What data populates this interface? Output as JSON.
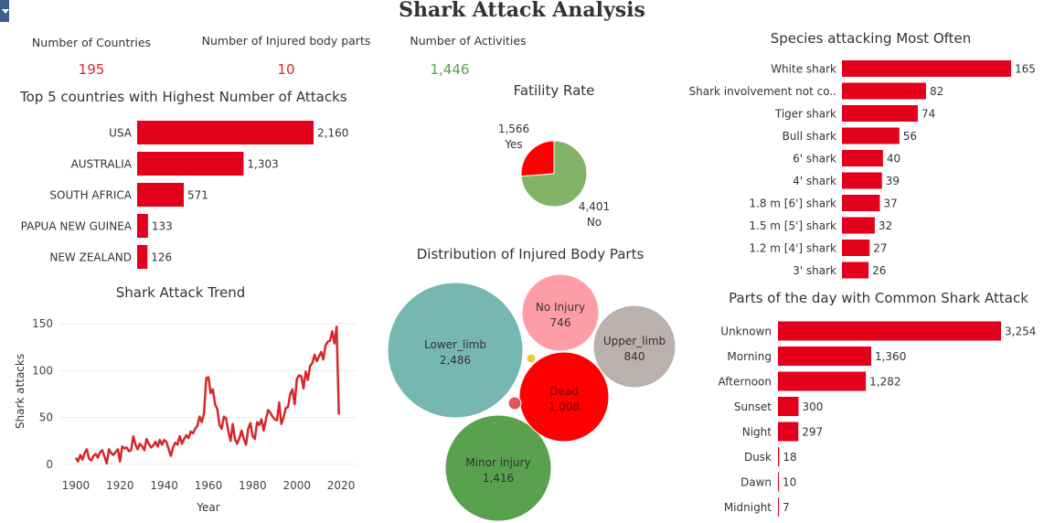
{
  "title": "Shark Attack Analysis",
  "kpis": [
    {
      "label": "Number of Countries",
      "value": "195",
      "color": "#d62728"
    },
    {
      "label": "Number of Injured body parts",
      "value": "10",
      "color": "#d62728"
    },
    {
      "label": "Number of Activities",
      "value": "1,446",
      "color": "#59a14f"
    }
  ],
  "bar_color": "#e3001b",
  "chart_data": [
    {
      "type": "bar",
      "orientation": "horizontal",
      "title": "Top 5 countries with Highest Number of Attacks",
      "categories": [
        "USA",
        "AUSTRALIA",
        "SOUTH AFRICA",
        "PAPUA NEW GUINEA",
        "NEW ZEALAND"
      ],
      "values": [
        2160,
        1303,
        571,
        133,
        126
      ],
      "labels": [
        "2,160",
        "1,303",
        "571",
        "133",
        "126"
      ]
    },
    {
      "type": "line",
      "title": "Shark Attack Trend",
      "xlabel": "Year",
      "ylabel": "Shark attacks",
      "xlim": [
        1893,
        2027
      ],
      "ylim": [
        -8,
        155
      ],
      "xticks": [
        1900,
        1920,
        1940,
        1960,
        1980,
        2000,
        2020
      ],
      "yticks": [
        0,
        50,
        100,
        150
      ],
      "x": [
        1900,
        1901,
        1902,
        1903,
        1904,
        1905,
        1906,
        1907,
        1908,
        1909,
        1910,
        1911,
        1912,
        1913,
        1914,
        1915,
        1916,
        1917,
        1918,
        1919,
        1920,
        1921,
        1922,
        1923,
        1924,
        1925,
        1926,
        1927,
        1928,
        1929,
        1930,
        1931,
        1932,
        1933,
        1934,
        1935,
        1936,
        1937,
        1938,
        1939,
        1940,
        1941,
        1942,
        1943,
        1944,
        1945,
        1946,
        1947,
        1948,
        1949,
        1950,
        1951,
        1952,
        1953,
        1954,
        1955,
        1956,
        1957,
        1958,
        1959,
        1960,
        1961,
        1962,
        1963,
        1964,
        1965,
        1966,
        1967,
        1968,
        1969,
        1970,
        1971,
        1972,
        1973,
        1974,
        1975,
        1976,
        1977,
        1978,
        1979,
        1980,
        1981,
        1982,
        1983,
        1984,
        1985,
        1986,
        1987,
        1988,
        1989,
        1990,
        1991,
        1992,
        1993,
        1994,
        1995,
        1996,
        1997,
        1998,
        1999,
        2000,
        2001,
        2002,
        2003,
        2004,
        2005,
        2006,
        2007,
        2008,
        2009,
        2010,
        2011,
        2012,
        2013,
        2014,
        2015,
        2016,
        2017,
        2018,
        2019
      ],
      "y": [
        7,
        3,
        10,
        5,
        12,
        16,
        6,
        4,
        9,
        11,
        7,
        13,
        15,
        8,
        1,
        16,
        12,
        10,
        13,
        16,
        3,
        19,
        17,
        18,
        14,
        15,
        30,
        21,
        16,
        22,
        19,
        15,
        27,
        22,
        18,
        20,
        24,
        19,
        26,
        21,
        26,
        24,
        16,
        9,
        18,
        23,
        21,
        30,
        22,
        27,
        31,
        28,
        35,
        33,
        38,
        41,
        51,
        45,
        55,
        92,
        93,
        76,
        80,
        64,
        59,
        42,
        38,
        51,
        49,
        35,
        25,
        43,
        27,
        22,
        28,
        36,
        27,
        21,
        38,
        44,
        30,
        27,
        45,
        42,
        48,
        36,
        48,
        58,
        55,
        51,
        48,
        47,
        66,
        43,
        50,
        60,
        61,
        75,
        80,
        64,
        91,
        95,
        94,
        81,
        99,
        90,
        105,
        108,
        117,
        110,
        115,
        120,
        112,
        127,
        131,
        132,
        142,
        129,
        147,
        53
      ],
      "series": [
        {
          "color": "#d62728"
        }
      ]
    },
    {
      "type": "pie",
      "title": "Fatility Rate",
      "slices": [
        {
          "label": "Yes",
          "value": 1566,
          "value_label": "1,566",
          "color": "#ff0000"
        },
        {
          "label": "No",
          "value": 4401,
          "value_label": "4,401",
          "color": "#82b366"
        }
      ]
    },
    {
      "type": "bubble",
      "title": "Distribution of Injured Body Parts",
      "bubbles": [
        {
          "label": "Lower_limb",
          "value": 2486,
          "value_label": "2,486",
          "color": "#76b7b2",
          "text_color": "#333333"
        },
        {
          "label": "Minor injury",
          "value": 1416,
          "value_label": "1,416",
          "color": "#59a14f",
          "text_color": "#333333"
        },
        {
          "label": "Dead",
          "value": 1008,
          "value_label": "1,008",
          "color": "#ff0000",
          "text_color": "#7a0000"
        },
        {
          "label": "Upper_limb",
          "value": 840,
          "value_label": "840",
          "color": "#bab0ac",
          "text_color": "#333333"
        },
        {
          "label": "No Injury",
          "value": 746,
          "value_label": "746",
          "color": "#ff9da7",
          "text_color": "#333333"
        },
        {
          "label": "",
          "value": 0,
          "value_label": "",
          "color": "#e15759",
          "text_color": "#333333"
        },
        {
          "label": "",
          "value": 0,
          "value_label": "",
          "color": "#edc948",
          "text_color": "#333333"
        }
      ]
    },
    {
      "type": "bar",
      "orientation": "horizontal",
      "title": "Species attacking Most Often",
      "categories": [
        "White shark",
        "Shark involvement not co..",
        "Tiger shark",
        "Bull shark",
        "6' shark",
        "4' shark",
        "1.8 m [6'] shark",
        "1.5 m [5'] shark",
        "1.2 m [4'] shark",
        "3' shark"
      ],
      "values": [
        165,
        82,
        74,
        56,
        40,
        39,
        37,
        32,
        27,
        26
      ],
      "labels": [
        "165",
        "82",
        "74",
        "56",
        "40",
        "39",
        "37",
        "32",
        "27",
        "26"
      ]
    },
    {
      "type": "bar",
      "orientation": "horizontal",
      "title": "Parts of the day with Common Shark Attack",
      "categories": [
        "Unknown",
        "Morning",
        "Afternoon",
        "Sunset",
        "Night",
        "Dusk",
        "Dawn",
        "Midnight"
      ],
      "values": [
        3254,
        1360,
        1282,
        300,
        297,
        18,
        10,
        7
      ],
      "labels": [
        "3,254",
        "1,360",
        "1,282",
        "300",
        "297",
        "18",
        "10",
        "7"
      ]
    }
  ]
}
